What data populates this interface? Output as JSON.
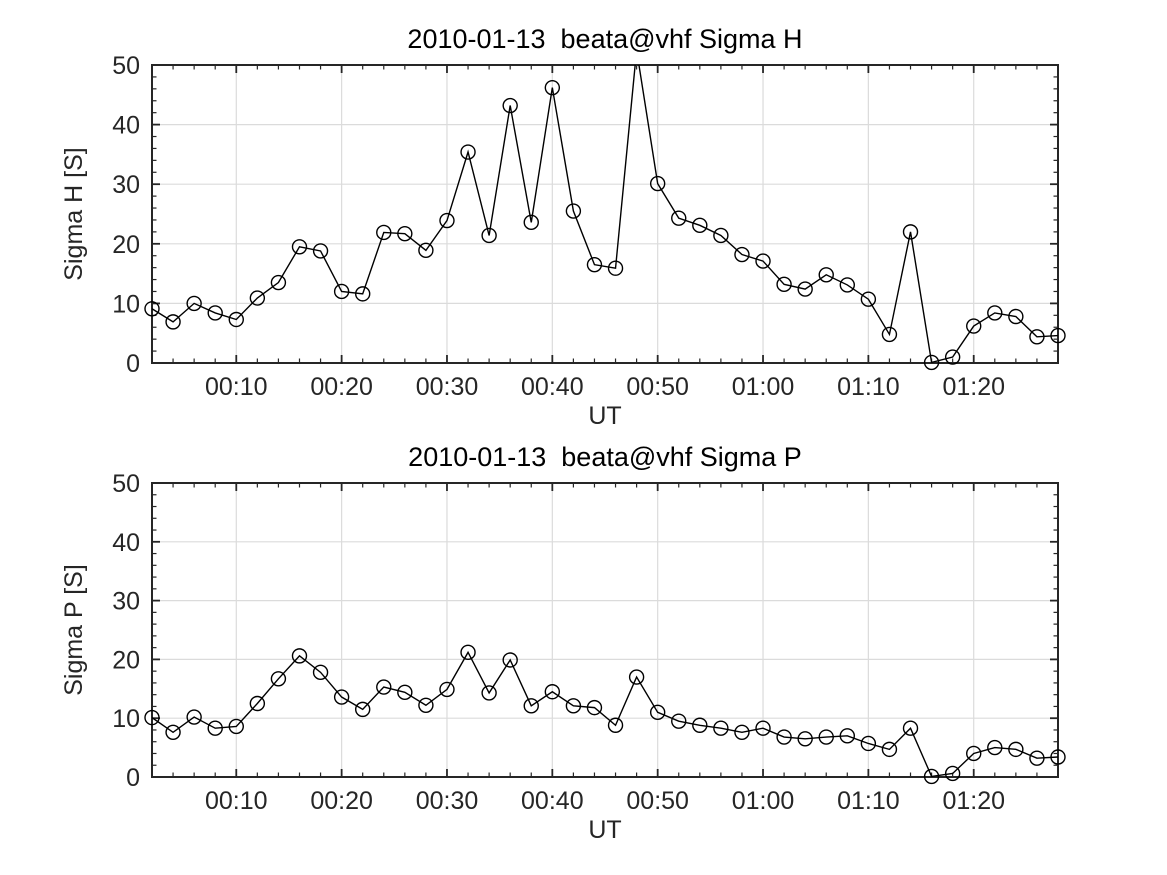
{
  "figure": {
    "background": "#ffffff",
    "grid_color": "#dbdbdb",
    "axes_color": "#262626",
    "series_color": "#000000"
  },
  "chart_data": [
    {
      "type": "line",
      "title": "2010-01-13  beata@vhf Sigma H",
      "xlabel": "UT",
      "ylabel": "Sigma H [S]",
      "xlim_minutes": [
        2,
        88
      ],
      "ylim": [
        0,
        50
      ],
      "grid": "on",
      "legend": null,
      "marker": "open-circle",
      "x_minor_step": 2,
      "y_minor_step": 2,
      "x_tick_minutes": [
        10,
        20,
        30,
        40,
        50,
        60,
        70,
        80
      ],
      "x_tick_labels": [
        "00:10",
        "00:20",
        "00:30",
        "00:40",
        "00:50",
        "01:00",
        "01:10",
        "01:20"
      ],
      "y_ticks": [
        0,
        10,
        20,
        30,
        40,
        50
      ],
      "y_tick_labels": [
        "0",
        "10",
        "20",
        "30",
        "40",
        "50"
      ],
      "x_minutes": [
        2,
        4,
        6,
        8,
        10,
        12,
        14,
        16,
        18,
        20,
        22,
        24,
        26,
        28,
        30,
        32,
        34,
        36,
        38,
        40,
        42,
        44,
        46,
        48,
        50,
        52,
        54,
        56,
        58,
        60,
        62,
        64,
        66,
        68,
        70,
        72,
        74,
        76,
        78,
        80,
        82,
        84,
        86,
        88
      ],
      "values": [
        9.1,
        6.9,
        10.0,
        8.4,
        7.3,
        10.9,
        13.5,
        19.5,
        18.8,
        12.0,
        11.6,
        21.9,
        21.7,
        18.9,
        23.9,
        35.4,
        21.4,
        43.2,
        23.6,
        46.2,
        25.5,
        16.5,
        15.9,
        52.5,
        30.1,
        24.3,
        23.1,
        21.4,
        18.2,
        17.1,
        13.2,
        12.4,
        14.8,
        13.1,
        10.7,
        4.8,
        22.0,
        0.1,
        1.0,
        6.2,
        8.4,
        7.8,
        4.4,
        4.6
      ]
    },
    {
      "type": "line",
      "title": "2010-01-13  beata@vhf Sigma P",
      "xlabel": "UT",
      "ylabel": "Sigma P [S]",
      "xlim_minutes": [
        2,
        88
      ],
      "ylim": [
        0,
        50
      ],
      "grid": "on",
      "legend": null,
      "marker": "open-circle",
      "x_minor_step": 2,
      "y_minor_step": 2,
      "x_tick_minutes": [
        10,
        20,
        30,
        40,
        50,
        60,
        70,
        80
      ],
      "x_tick_labels": [
        "00:10",
        "00:20",
        "00:30",
        "00:40",
        "00:50",
        "01:00",
        "01:10",
        "01:20"
      ],
      "y_ticks": [
        0,
        10,
        20,
        30,
        40,
        50
      ],
      "y_tick_labels": [
        "0",
        "10",
        "20",
        "30",
        "40",
        "50"
      ],
      "x_minutes": [
        2,
        4,
        6,
        8,
        10,
        12,
        14,
        16,
        18,
        20,
        22,
        24,
        26,
        28,
        30,
        32,
        34,
        36,
        38,
        40,
        42,
        44,
        46,
        48,
        50,
        52,
        54,
        56,
        58,
        60,
        62,
        64,
        66,
        68,
        70,
        72,
        74,
        76,
        78,
        80,
        82,
        84,
        86,
        88
      ],
      "values": [
        10.1,
        7.6,
        10.2,
        8.3,
        8.6,
        12.5,
        16.7,
        20.6,
        17.8,
        13.6,
        11.5,
        15.3,
        14.4,
        12.2,
        14.9,
        21.2,
        14.3,
        19.9,
        12.1,
        14.5,
        12.1,
        11.8,
        8.8,
        17.0,
        11.0,
        9.5,
        8.8,
        8.3,
        7.6,
        8.3,
        6.8,
        6.5,
        6.8,
        7.0,
        5.7,
        4.7,
        8.3,
        0.1,
        0.6,
        4.0,
        5.0,
        4.7,
        3.2,
        3.4
      ]
    }
  ]
}
